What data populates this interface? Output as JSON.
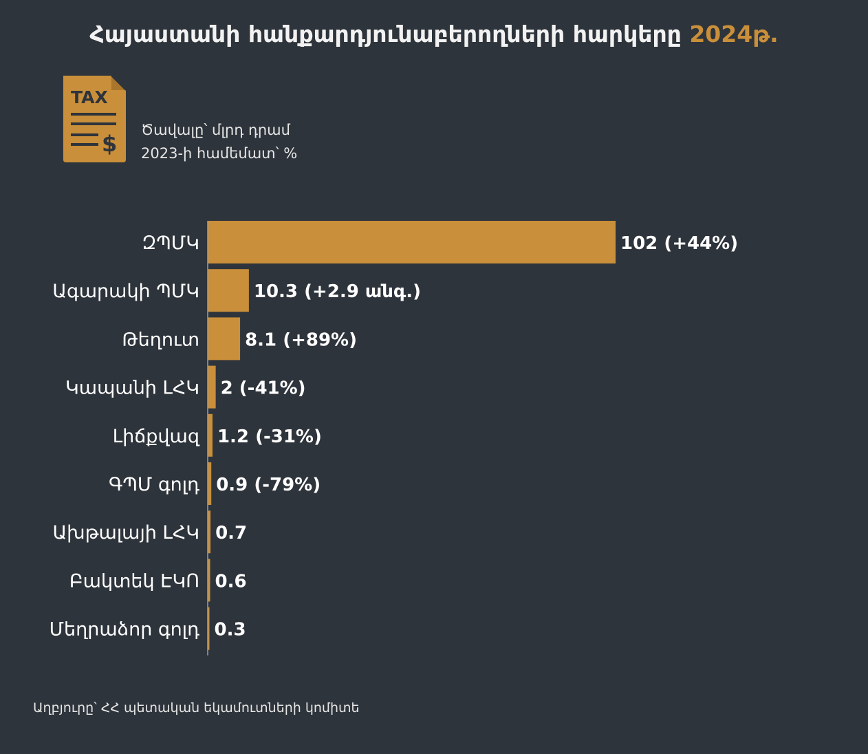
{
  "header": {
    "title_main": "Հայաստանի հանքարդյունաբերողների հարկերը",
    "title_year": "2024թ."
  },
  "icon": {
    "name": "tax-document-icon",
    "label": "TAX",
    "symbol": "$",
    "color": "#c98f3a"
  },
  "subtitle": {
    "line1": "Ծավալը՝ մլրդ դրամ",
    "line2": "2023-ի համեմատ՝ %"
  },
  "chart_data": {
    "type": "bar",
    "orientation": "horizontal",
    "categories": [
      "ԶՊՄԿ",
      "Ագարակի ՊՄԿ",
      "Թեղուտ",
      "Կապանի ԼՀԿ",
      "Լիճքվազ",
      "ԳՊՄ գոլդ",
      "Ախթալայի ԼՀԿ",
      "Բակտեկ ԷԿՈ",
      "Մեղրաձոր գոլդ"
    ],
    "values": [
      102,
      10.3,
      8.1,
      2,
      1.2,
      0.9,
      0.7,
      0.6,
      0.3
    ],
    "data_labels": [
      "102 (+44%)",
      "10.3 (+2.9 անգ.)",
      "8.1 (+89%)",
      "2 (-41%)",
      "1.2 (-31%)",
      "0.9 (-79%)",
      "0.7",
      "0.6",
      "0.3"
    ],
    "bar_color": "#c98f3a",
    "xlim": [
      0,
      102
    ],
    "grid": false
  },
  "footer": {
    "source": "Աղբյուրը՝ ՀՀ պետական եկամուտների կոմիտե"
  }
}
